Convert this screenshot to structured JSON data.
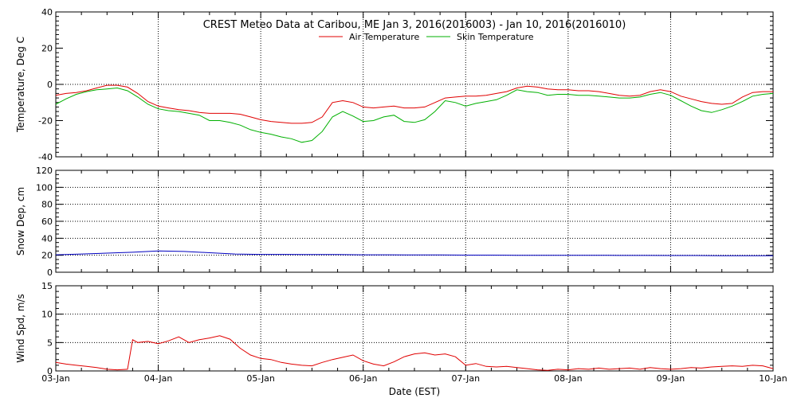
{
  "chart_data": [
    {
      "type": "line",
      "title": "CREST Meteo Data at Caribou, ME   Jan  3, 2016(2016003) - Jan 10, 2016(2016010)",
      "ylabel": "Temperature, Deg C",
      "ylim": [
        -40,
        40
      ],
      "yticks": [
        "-40",
        "-20",
        "0",
        "20",
        "40"
      ],
      "xlim": [
        0,
        7
      ],
      "grid": "dotted-vertical-and-zero-line",
      "legend": "top-center",
      "series": [
        {
          "name": "Air Temperature",
          "color": "#e00000",
          "x": [
            0,
            0.1,
            0.2,
            0.3,
            0.4,
            0.5,
            0.6,
            0.7,
            0.8,
            0.9,
            1.0,
            1.1,
            1.2,
            1.3,
            1.4,
            1.5,
            1.6,
            1.7,
            1.8,
            1.9,
            2.0,
            2.1,
            2.2,
            2.3,
            2.4,
            2.5,
            2.6,
            2.7,
            2.8,
            2.9,
            3.0,
            3.1,
            3.2,
            3.3,
            3.4,
            3.5,
            3.6,
            3.7,
            3.8,
            3.9,
            4.0,
            4.1,
            4.2,
            4.3,
            4.4,
            4.5,
            4.6,
            4.7,
            4.8,
            4.9,
            5.0,
            5.1,
            5.2,
            5.3,
            5.4,
            5.5,
            5.6,
            5.7,
            5.8,
            5.9,
            6.0,
            6.1,
            6.2,
            6.3,
            6.4,
            6.5,
            6.6,
            6.7,
            6.8,
            6.9,
            7.0
          ],
          "values": [
            -6,
            -5,
            -4.5,
            -3.5,
            -2,
            -0.5,
            -0.5,
            -1.5,
            -5,
            -9.5,
            -12,
            -13,
            -14,
            -14.5,
            -15.5,
            -16,
            -16,
            -16,
            -16.5,
            -18,
            -19.5,
            -20.5,
            -21,
            -21.5,
            -21.5,
            -21,
            -18,
            -10,
            -9,
            -10,
            -12.5,
            -13,
            -12.5,
            -12,
            -13,
            -13,
            -12.5,
            -10,
            -7.5,
            -7,
            -6.5,
            -6.5,
            -6,
            -5,
            -4,
            -2,
            -1,
            -1.5,
            -2.5,
            -3,
            -3,
            -3.5,
            -3.5,
            -4,
            -5,
            -6,
            -6.5,
            -6,
            -4,
            -3,
            -4,
            -6.5,
            -8,
            -9.5,
            -10.5,
            -11,
            -10.5,
            -7,
            -4.5,
            -4,
            -4
          ]
        },
        {
          "name": "Skin Temperature",
          "color": "#00b000",
          "x": [
            0,
            0.1,
            0.2,
            0.3,
            0.4,
            0.5,
            0.6,
            0.7,
            0.8,
            0.9,
            1.0,
            1.1,
            1.2,
            1.3,
            1.4,
            1.5,
            1.6,
            1.7,
            1.8,
            1.9,
            2.0,
            2.1,
            2.2,
            2.3,
            2.4,
            2.5,
            2.6,
            2.7,
            2.8,
            2.9,
            3.0,
            3.1,
            3.2,
            3.3,
            3.4,
            3.5,
            3.6,
            3.7,
            3.8,
            3.9,
            4.0,
            4.1,
            4.2,
            4.3,
            4.4,
            4.5,
            4.6,
            4.7,
            4.8,
            4.9,
            5.0,
            5.1,
            5.2,
            5.3,
            5.4,
            5.5,
            5.6,
            5.7,
            5.8,
            5.9,
            6.0,
            6.1,
            6.2,
            6.3,
            6.4,
            6.5,
            6.6,
            6.7,
            6.8,
            6.9,
            7.0
          ],
          "values": [
            -11,
            -8,
            -5.5,
            -4,
            -3,
            -2.5,
            -2,
            -3.5,
            -7,
            -11,
            -13.5,
            -14.5,
            -15,
            -16,
            -17,
            -20,
            -20,
            -21,
            -22.5,
            -25,
            -26.5,
            -27.5,
            -29,
            -30,
            -32,
            -31,
            -26,
            -18,
            -15,
            -17.5,
            -20.5,
            -20,
            -18,
            -17,
            -20.5,
            -21,
            -19.5,
            -15,
            -9,
            -10,
            -12,
            -10.5,
            -9.5,
            -8.5,
            -6,
            -3,
            -4,
            -4.5,
            -6,
            -5.5,
            -5.5,
            -6,
            -6,
            -6.5,
            -7,
            -7.5,
            -7.5,
            -7,
            -5.5,
            -4.5,
            -6,
            -9,
            -12,
            -14.5,
            -15.5,
            -14,
            -12,
            -9.5,
            -6.5,
            -5.5,
            -5
          ]
        }
      ]
    },
    {
      "type": "line",
      "ylabel": "Snow Dep, cm",
      "ylim": [
        0,
        120
      ],
      "yticks": [
        "0",
        "20",
        "40",
        "60",
        "80",
        "100",
        "120"
      ],
      "xlim": [
        0,
        7
      ],
      "grid": "dotted-both",
      "series": [
        {
          "color": "#0000c0",
          "x": [
            0,
            0.25,
            0.5,
            0.75,
            1.0,
            1.25,
            1.5,
            1.75,
            2.0,
            2.25,
            2.5,
            2.75,
            3.0,
            3.25,
            3.5,
            3.75,
            4.0,
            4.25,
            4.5,
            4.75,
            5.0,
            5.25,
            5.5,
            5.75,
            6.0,
            6.25,
            6.5,
            6.75,
            7.0
          ],
          "values": [
            20.5,
            21.5,
            22.5,
            23.5,
            25,
            24.5,
            23,
            21.5,
            21,
            21,
            20.8,
            20.8,
            20.5,
            20.5,
            20.3,
            20.3,
            20.2,
            20.2,
            20,
            20,
            20,
            20,
            19.8,
            19.8,
            19.7,
            19.7,
            19.5,
            19.5,
            19.4
          ]
        }
      ]
    },
    {
      "type": "line",
      "ylabel": "Wind Spd, m/s",
      "xlabel": "Date (EST)",
      "ylim": [
        0,
        15
      ],
      "yticks": [
        "0",
        "5",
        "10",
        "15"
      ],
      "xlim": [
        0,
        7
      ],
      "categories": [
        "03-Jan",
        "04-Jan",
        "05-Jan",
        "06-Jan",
        "07-Jan",
        "08-Jan",
        "09-Jan",
        "10-Jan"
      ],
      "grid": "dotted-both",
      "series": [
        {
          "color": "#e00000",
          "x": [
            0,
            0.1,
            0.2,
            0.3,
            0.4,
            0.5,
            0.6,
            0.7,
            0.75,
            0.8,
            0.9,
            1.0,
            1.1,
            1.2,
            1.3,
            1.4,
            1.5,
            1.6,
            1.7,
            1.8,
            1.9,
            2.0,
            2.1,
            2.2,
            2.3,
            2.4,
            2.5,
            2.6,
            2.7,
            2.8,
            2.9,
            3.0,
            3.1,
            3.2,
            3.3,
            3.4,
            3.5,
            3.6,
            3.7,
            3.8,
            3.9,
            4.0,
            4.1,
            4.2,
            4.3,
            4.4,
            4.5,
            4.6,
            4.7,
            4.8,
            4.9,
            5.0,
            5.1,
            5.2,
            5.3,
            5.4,
            5.5,
            5.6,
            5.7,
            5.8,
            5.9,
            6.0,
            6.1,
            6.2,
            6.3,
            6.4,
            6.5,
            6.6,
            6.7,
            6.8,
            6.9,
            7.0
          ],
          "values": [
            1.5,
            1.2,
            1.0,
            0.8,
            0.6,
            0.3,
            0.2,
            0.3,
            5.5,
            5.0,
            5.2,
            4.8,
            5.3,
            6.0,
            5.0,
            5.5,
            5.8,
            6.2,
            5.6,
            4.0,
            2.8,
            2.2,
            2.0,
            1.5,
            1.2,
            1.0,
            0.9,
            1.5,
            2.0,
            2.4,
            2.8,
            1.8,
            1.2,
            0.9,
            1.6,
            2.5,
            3.0,
            3.2,
            2.8,
            3.0,
            2.5,
            1.0,
            1.3,
            0.8,
            0.7,
            0.8,
            0.6,
            0.4,
            0.2,
            0.1,
            0.3,
            0.2,
            0.4,
            0.3,
            0.5,
            0.3,
            0.4,
            0.5,
            0.3,
            0.6,
            0.4,
            0.3,
            0.4,
            0.6,
            0.5,
            0.7,
            0.8,
            0.9,
            0.8,
            1.0,
            0.9,
            0.4
          ]
        }
      ]
    }
  ]
}
